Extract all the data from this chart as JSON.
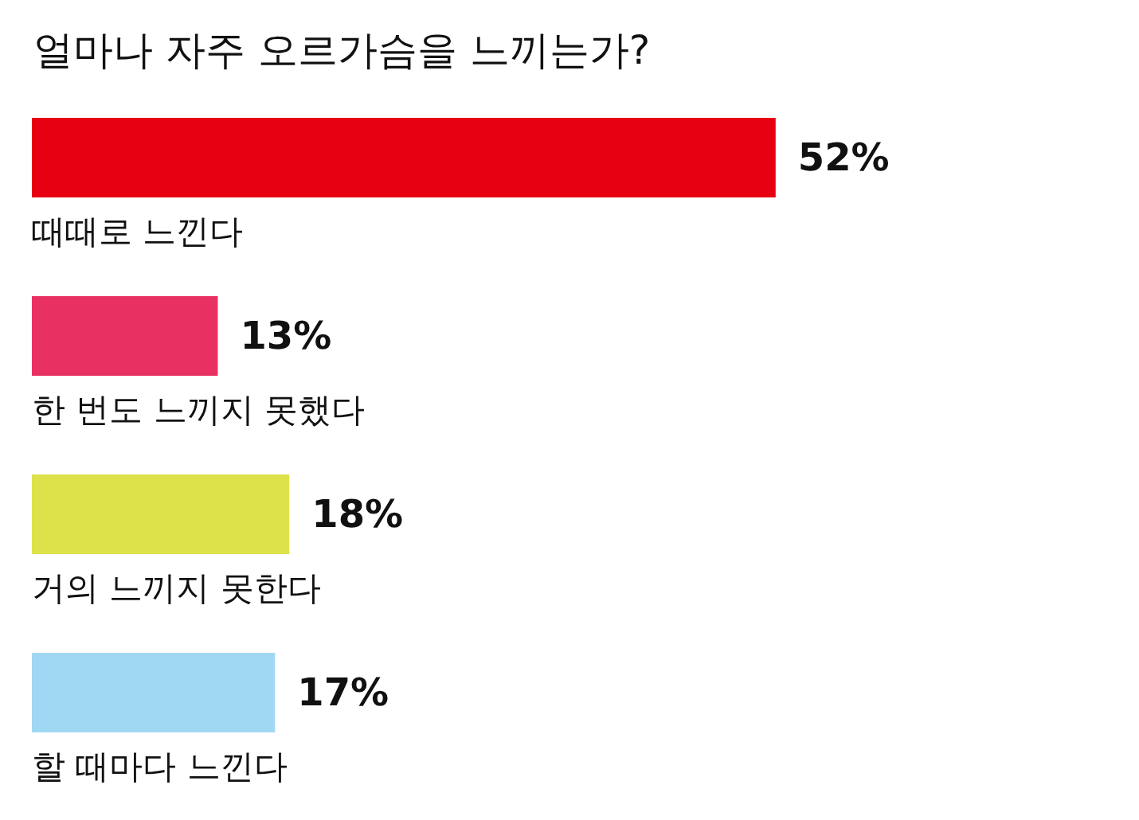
{
  "chart_data": {
    "type": "bar",
    "orientation": "horizontal",
    "title": "얼마나 자주 오르가슴을 느끼는가?",
    "categories": [
      "때때로 느낀다",
      "한 번도 느끼지 못했다",
      "거의 느끼지 못한다",
      "할 때마다 느낀다"
    ],
    "values": [
      52,
      13,
      18,
      17
    ],
    "colors": [
      "#e60012",
      "#e83162",
      "#dde24a",
      "#a0d8f4"
    ],
    "value_labels": [
      "52%",
      "13%",
      "18%",
      "17%"
    ]
  }
}
